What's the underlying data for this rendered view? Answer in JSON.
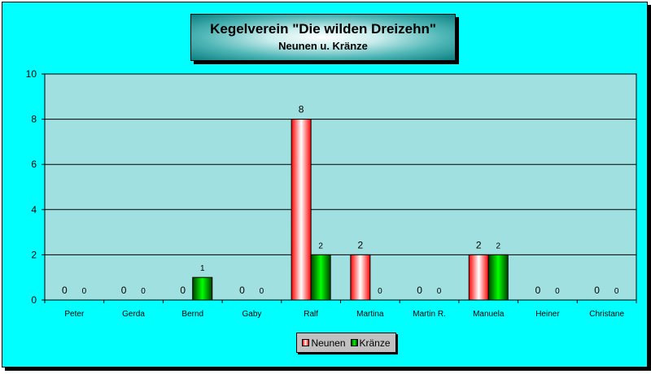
{
  "chart_data": {
    "type": "bar",
    "title": "Kegelverein \"Die wilden Dreizehn\"",
    "subtitle": "Neunen u. Kränze",
    "categories": [
      "Peter",
      "Gerda",
      "Bernd",
      "Gaby",
      "Ralf",
      "Martina",
      "Martin R.",
      "Manuela",
      "Heiner",
      "Christane"
    ],
    "series": [
      {
        "name": "Neunen",
        "values": [
          0,
          0,
          0,
          0,
          8,
          2,
          0,
          2,
          0,
          0
        ],
        "color": "#ff0000"
      },
      {
        "name": "Kränze",
        "values": [
          0,
          0,
          1,
          0,
          2,
          0,
          0,
          2,
          0,
          0
        ],
        "color": "#008000"
      }
    ],
    "ylim": [
      0,
      10
    ],
    "yticks": [
      "0",
      "2",
      "4",
      "6",
      "8",
      "10"
    ],
    "grid": true,
    "legend_position": "bottom",
    "colors": {
      "background": "#00ffff",
      "plot_area": "#a1e0e0",
      "legend": "#c0c0c0"
    }
  }
}
